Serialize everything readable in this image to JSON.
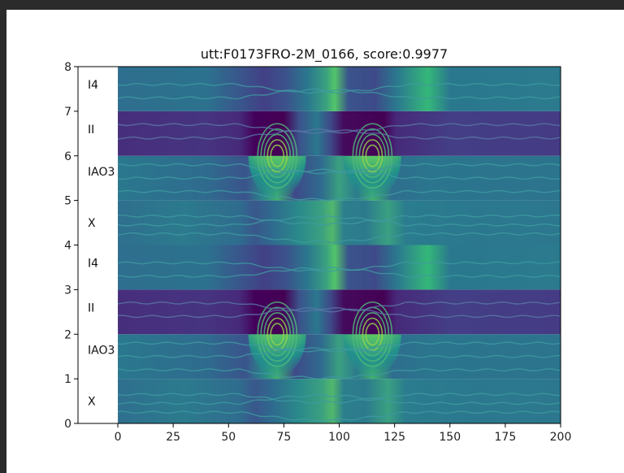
{
  "chart_data": {
    "type": "heatmap",
    "title": "utt:F0173FRO-2M_0166, score:0.9977",
    "xlim": [
      -18,
      200
    ],
    "ylim": [
      0,
      8
    ],
    "x_ticks": [
      0,
      25,
      50,
      75,
      100,
      125,
      150,
      175,
      200
    ],
    "y_ticks": [
      0,
      1,
      2,
      3,
      4,
      5,
      6,
      7,
      8
    ],
    "row_labels": [
      {
        "label": "X",
        "y": 0.5
      },
      {
        "label": "IAO3",
        "y": 1.65
      },
      {
        "label": "II",
        "y": 2.6
      },
      {
        "label": "I4",
        "y": 3.6
      },
      {
        "label": "X",
        "y": 4.5
      },
      {
        "label": "IAO3",
        "y": 5.65
      },
      {
        "label": "II",
        "y": 6.6
      },
      {
        "label": "I4",
        "y": 7.6
      }
    ],
    "bands": [
      {
        "y0": 0,
        "y1": 1,
        "kind": "teal"
      },
      {
        "y0": 1,
        "y1": 2,
        "kind": "peaks"
      },
      {
        "y0": 2,
        "y1": 3,
        "kind": "dark"
      },
      {
        "y0": 3,
        "y1": 4,
        "kind": "mid"
      },
      {
        "y0": 4,
        "y1": 5,
        "kind": "teal"
      },
      {
        "y0": 5,
        "y1": 6,
        "kind": "peaks"
      },
      {
        "y0": 6,
        "y1": 7,
        "kind": "dark"
      },
      {
        "y0": 7,
        "y1": 8,
        "kind": "mid"
      }
    ],
    "peaks_x": [
      72,
      115
    ],
    "colormap": "viridis",
    "colors": {
      "low": "#440154",
      "mid": "#2b758e",
      "high": "#fde725"
    }
  }
}
